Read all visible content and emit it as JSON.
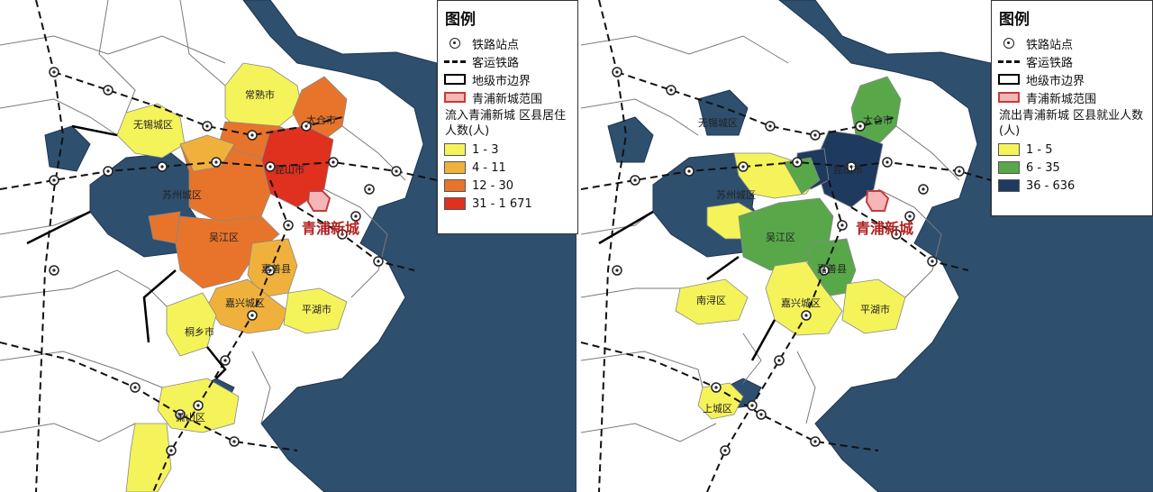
{
  "colors": {
    "water": "#2f4f6f",
    "background": "#ffffff",
    "boundary": "#6b6b6b",
    "city_border": "#000000",
    "qingpu_fill": "#f4b6b6",
    "qingpu_border": "#c43c3c"
  },
  "left_map": {
    "legend": {
      "title": "图例",
      "items": [
        {
          "icon": "station-icon",
          "label": "铁路站点"
        },
        {
          "icon": "railway-icon",
          "label": "客运铁路"
        },
        {
          "icon": "city-border-icon",
          "label": "地级市边界"
        },
        {
          "icon": "qingpu-area-icon",
          "label": "青浦新城范围"
        }
      ],
      "class_title": "流入青浦新城 区县居住人数(人)",
      "classes": [
        {
          "label": "1 - 3",
          "color": "#f5f35a"
        },
        {
          "label": "4 - 11",
          "color": "#f0b13c"
        },
        {
          "label": "12 - 30",
          "color": "#e8742b"
        },
        {
          "label": "31 - 1 671",
          "color": "#e0301e"
        }
      ]
    },
    "labels": {
      "changshu": "常熟市",
      "wuxi": "无锡城区",
      "taicang": "太仓市",
      "kunshan": "昆山市",
      "suzhou": "苏州城区",
      "wujiang": "吴江区",
      "qingpu": "青浦新城",
      "jiashan": "嘉善县",
      "jiaxing": "嘉兴城区",
      "pinghu": "平湖市",
      "tongxiang": "桐乡市",
      "xiaoshan": "萧山区"
    }
  },
  "right_map": {
    "legend": {
      "title": "图例",
      "items": [
        {
          "icon": "station-icon",
          "label": "铁路站点"
        },
        {
          "icon": "railway-icon",
          "label": "客运铁路"
        },
        {
          "icon": "city-border-icon",
          "label": "地级市边界"
        },
        {
          "icon": "qingpu-area-icon",
          "label": "青浦新城范围"
        }
      ],
      "class_title": "流出青浦新城 区县就业人数(人)",
      "classes": [
        {
          "label": "1 - 5",
          "color": "#f5f35a"
        },
        {
          "label": "6 - 35",
          "color": "#58a84a"
        },
        {
          "label": "36 - 636",
          "color": "#1f3a5f"
        }
      ]
    },
    "labels": {
      "wuxi": "无锡城区",
      "taicang": "太仓市",
      "kunshan": "昆山市",
      "suzhou": "苏州城区",
      "wujiang": "吴江区",
      "qingpu": "青浦新城",
      "jiashan": "嘉善县",
      "jiaxing": "嘉兴城区",
      "pinghu": "平湖市",
      "nanxun": "南浔区",
      "shangcheng": "上城区"
    }
  }
}
